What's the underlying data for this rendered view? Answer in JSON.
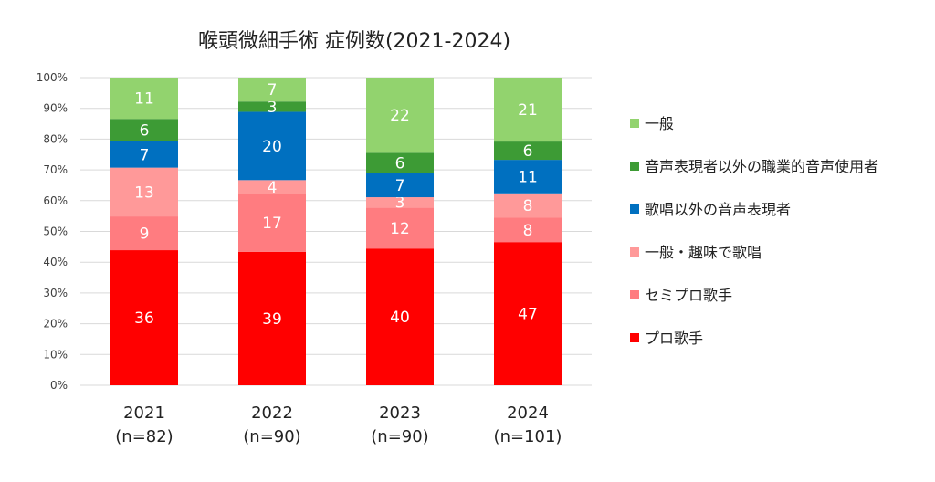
{
  "chart_data": {
    "type": "bar",
    "stacked": true,
    "percent_stacked": true,
    "title": "喉頭微細手術 症例数(2021-2024)",
    "categories": [
      "2021",
      "2022",
      "2023",
      "2024"
    ],
    "category_sublabels": [
      "(n=82)",
      "(n=90)",
      "(n=90)",
      "(n=101)"
    ],
    "ylim": [
      0,
      100
    ],
    "yticks": [
      "0%",
      "10%",
      "20%",
      "30%",
      "40%",
      "50%",
      "60%",
      "70%",
      "80%",
      "90%",
      "100%"
    ],
    "grid": true,
    "legend_position": "right",
    "series": [
      {
        "name": "プロ歌手",
        "values": [
          36,
          39,
          40,
          47
        ],
        "color": "#ff0000",
        "label_color": "#ffffff"
      },
      {
        "name": "セミプロ歌手",
        "values": [
          9,
          17,
          12,
          8
        ],
        "color": "#ff7c80",
        "label_color": "#ffffff"
      },
      {
        "name": "一般・趣味で歌唱",
        "values": [
          13,
          4,
          3,
          8
        ],
        "color": "#ff9999",
        "label_color": "#ffffff"
      },
      {
        "name": "歌唱以外の音声表現者",
        "values": [
          7,
          20,
          7,
          11
        ],
        "color": "#0070c0",
        "label_color": "#ffffff"
      },
      {
        "name": "音声表現者以外の職業的音声使用者",
        "values": [
          6,
          3,
          6,
          6
        ],
        "color": "#3d9b35",
        "label_color": "#ffffff"
      },
      {
        "name": "一般",
        "values": [
          11,
          7,
          22,
          21
        ],
        "color": "#92d36e",
        "label_color": "#ffffff"
      }
    ],
    "legend_order": [
      "一般",
      "音声表現者以外の職業的音声使用者",
      "歌唱以外の音声表現者",
      "一般・趣味で歌唱",
      "セミプロ歌手",
      "プロ歌手"
    ]
  }
}
